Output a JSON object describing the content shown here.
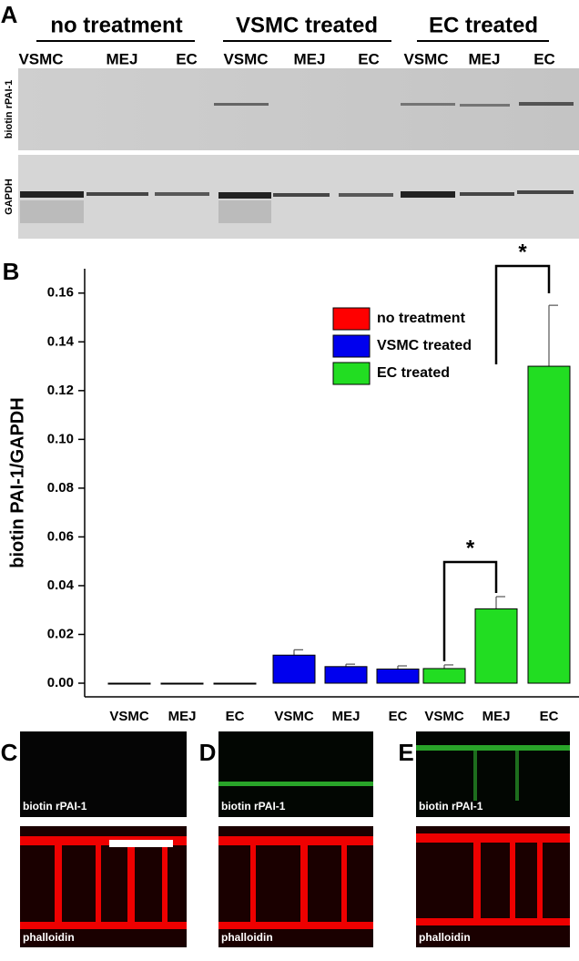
{
  "panel_labels": [
    "A",
    "B",
    "C",
    "D",
    "E"
  ],
  "blot": {
    "groups": [
      "no treatment",
      "VSMC treated",
      "EC treated"
    ],
    "lanes": [
      "VSMC",
      "MEJ",
      "EC",
      "VSMC",
      "MEJ",
      "EC",
      "VSMC",
      "MEJ",
      "EC"
    ],
    "rows": [
      "biotin rPAI-1",
      "GAPDH"
    ]
  },
  "chart_data": {
    "type": "bar",
    "y_label": "biotin PAI-1/GAPDH",
    "categories": [
      "VSMC",
      "MEJ",
      "EC",
      "VSMC",
      "MEJ",
      "EC",
      "VSMC",
      "MEJ",
      "EC"
    ],
    "series": [
      {
        "name": "no treatment",
        "color": "#ff0000",
        "values": [
          0,
          0,
          0,
          null,
          null,
          null,
          null,
          null,
          null
        ],
        "errors": [
          null,
          null,
          null,
          null,
          null,
          null,
          null,
          null,
          null
        ]
      },
      {
        "name": "VSMC treated",
        "color": "#0000ee",
        "values": [
          null,
          null,
          null,
          0.0115,
          0.0068,
          0.0058,
          null,
          null,
          null
        ],
        "errors": [
          null,
          null,
          null,
          0.0022,
          0.001,
          0.0013,
          null,
          null,
          null
        ]
      },
      {
        "name": "EC treated",
        "color": "#22dd22",
        "values": [
          null,
          null,
          null,
          null,
          null,
          null,
          0.006,
          0.0305,
          0.13
        ],
        "errors": [
          null,
          null,
          null,
          null,
          null,
          null,
          0.0015,
          0.005,
          0.025
        ]
      }
    ],
    "ylim": [
      -0.0056,
      0.17
    ],
    "yticks": [
      {
        "value": 0,
        "label": "0.00"
      },
      {
        "value": 0.02,
        "label": "0.02"
      },
      {
        "value": 0.04,
        "label": "0.04"
      },
      {
        "value": 0.06,
        "label": "0.06"
      },
      {
        "value": 0.08,
        "label": "0.08"
      },
      {
        "value": 0.1,
        "label": "0.10"
      },
      {
        "value": 0.12,
        "label": "0.12"
      },
      {
        "value": 0.14,
        "label": "0.14"
      },
      {
        "value": 0.16,
        "label": "0.16"
      }
    ],
    "significance": [
      "*",
      "*"
    ]
  },
  "micrographs": [
    {
      "top_label": "biotin rPAI-1",
      "bottom_label": "phalloidin"
    },
    {
      "top_label": "biotin rPAI-1",
      "bottom_label": "phalloidin"
    },
    {
      "top_label": "biotin rPAI-1",
      "bottom_label": "phalloidin"
    }
  ]
}
